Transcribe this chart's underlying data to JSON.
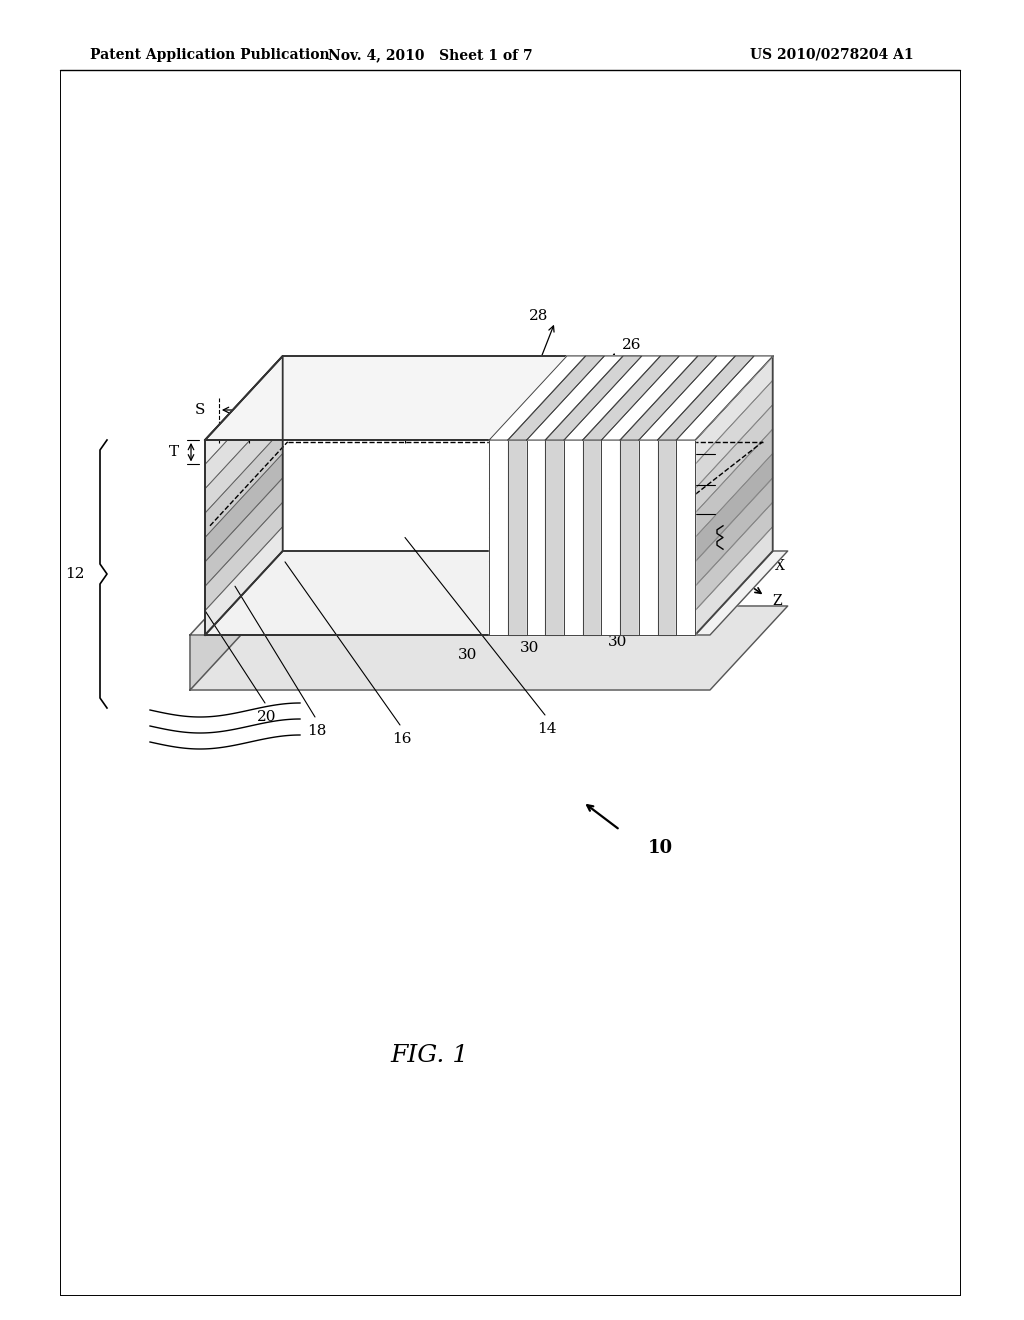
{
  "bg_color": "#ffffff",
  "line_color": "#000000",
  "header_left": "Patent Application Publication",
  "header_mid": "Nov. 4, 2010   Sheet 1 of 7",
  "header_right": "US 2010/0278204 A1",
  "fig_label": "FIG. 1"
}
